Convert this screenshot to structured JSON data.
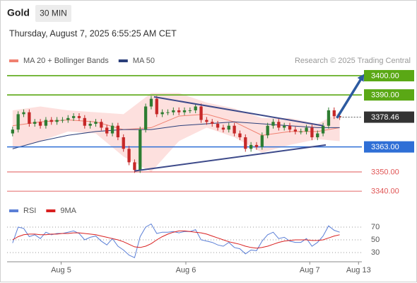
{
  "header": {
    "title": "Gold",
    "timeframe": "30 MIN",
    "datetime": "Thursday, August 7, 2025 6:55:25 AM CET",
    "credit": "Research © 2025 Trading Central"
  },
  "chart_data": [
    {
      "type": "candlestick",
      "up_color": "#2e7d32",
      "down_color": "#c62828",
      "xlim": [
        0,
        64
      ],
      "ylim": [
        3336.4,
        3404.4
      ],
      "x": [
        1,
        2,
        3,
        4,
        5,
        6,
        7,
        8,
        9,
        10,
        11,
        12,
        13,
        14,
        15,
        16,
        17,
        18,
        19,
        20,
        21,
        22,
        23,
        24,
        25,
        26,
        27,
        28,
        29,
        30,
        31,
        32,
        33,
        34,
        35,
        36,
        37,
        38,
        39,
        40,
        41,
        42,
        43,
        44,
        45,
        46,
        47,
        48,
        49,
        50,
        51,
        52,
        53,
        54,
        55,
        56,
        57,
        58,
        59,
        60
      ],
      "open": [
        3370,
        3372,
        3380,
        3381,
        3375,
        3376,
        3374,
        3377,
        3376,
        3377,
        3377,
        3378,
        3379,
        3378,
        3374,
        3375,
        3376,
        3373,
        3370,
        3374,
        3368,
        3362,
        3355,
        3351,
        3372,
        3384,
        3388,
        3380,
        3381,
        3381,
        3382,
        3381,
        3382,
        3382,
        3384,
        3377,
        3376,
        3375,
        3373,
        3372,
        3374,
        3370,
        3368,
        3362,
        3364,
        3363,
        3369,
        3374,
        3376,
        3373,
        3374,
        3372,
        3371,
        3371,
        3373,
        3368,
        3370,
        3374,
        3382,
        3379
      ],
      "high": [
        3373.5,
        3381.5,
        3382.5,
        3382.5,
        3377.5,
        3377.5,
        3378.5,
        3378.5,
        3378.5,
        3378.5,
        3379.5,
        3380.5,
        3380.5,
        3379.5,
        3376.5,
        3377.5,
        3377.5,
        3374.5,
        3375.5,
        3375.5,
        3369.5,
        3363.5,
        3356.5,
        3373.5,
        3385.5,
        3389.5,
        3389.5,
        3382.5,
        3382.5,
        3383.5,
        3383.5,
        3383.5,
        3383.5,
        3385.5,
        3385.5,
        3378.5,
        3377.5,
        3376.5,
        3374.5,
        3375.5,
        3375.5,
        3371.5,
        3369.5,
        3365.5,
        3365.5,
        3370.5,
        3375.5,
        3377.5,
        3377.5,
        3375.5,
        3375.5,
        3373.5,
        3372.5,
        3374.5,
        3374.5,
        3371.5,
        3375.5,
        3383.5,
        3383.5,
        3380.5
      ],
      "low": [
        3368.5,
        3370.5,
        3378.5,
        3373.5,
        3373.5,
        3372.5,
        3372.5,
        3374.5,
        3374.5,
        3375.5,
        3375.5,
        3376.5,
        3376.5,
        3372.5,
        3372.5,
        3373.5,
        3371.5,
        3368.5,
        3368.5,
        3366.5,
        3360.5,
        3353.5,
        3349.5,
        3349.5,
        3370.5,
        3382.5,
        3378.5,
        3378.5,
        3379.5,
        3379.5,
        3379.5,
        3379.5,
        3380.5,
        3380.5,
        3375.5,
        3374.5,
        3373.5,
        3371.5,
        3370.5,
        3370.5,
        3368.5,
        3366.5,
        3360.5,
        3360.5,
        3361.5,
        3361.5,
        3367.5,
        3372.5,
        3371.5,
        3371.5,
        3370.5,
        3369.5,
        3369.5,
        3369.5,
        3366.5,
        3366.5,
        3368.5,
        3372.5,
        3377.5,
        3377
      ],
      "close": [
        3372,
        3380,
        3381,
        3375,
        3376,
        3374,
        3377,
        3376,
        3377,
        3377,
        3378,
        3379,
        3378,
        3374,
        3375,
        3376,
        3373,
        3370,
        3374,
        3368,
        3362,
        3355,
        3351,
        3372,
        3384,
        3388,
        3380,
        3381,
        3381,
        3382,
        3381,
        3382,
        3382,
        3384,
        3377,
        3376,
        3375,
        3373,
        3372,
        3374,
        3370,
        3368,
        3362,
        3364,
        3363,
        3369,
        3374,
        3376,
        3373,
        3374,
        3372,
        3371,
        3371,
        3373,
        3368,
        3370,
        3374,
        3382,
        3379,
        3378.46
      ],
      "series": [
        {
          "name": "MA 20 + Bollinger Bands",
          "color": "#f08070",
          "band_color": "#fde0de",
          "x": [
            1,
            6,
            11,
            16,
            21,
            26,
            31,
            36,
            41,
            46,
            51,
            56,
            60
          ],
          "values": [
            3374,
            3376,
            3377,
            3376,
            3372,
            3373,
            3379,
            3380,
            3376,
            3369,
            3371,
            3371,
            3373
          ],
          "upper": [
            3382,
            3384,
            3382,
            3381,
            3380,
            3391,
            3391,
            3386,
            3383,
            3378,
            3378,
            3375,
            3381
          ],
          "lower": [
            3362,
            3366,
            3371,
            3370,
            3358,
            3350,
            3366,
            3373,
            3368,
            3360,
            3364,
            3367,
            3366
          ]
        },
        {
          "name": "MA 50",
          "color": "#2b3f7a",
          "x": [
            1,
            6,
            11,
            16,
            21,
            26,
            31,
            36,
            41,
            46,
            51,
            56,
            60
          ],
          "values": [
            3362,
            3366,
            3369,
            3371,
            3372,
            3372,
            3374,
            3375,
            3376,
            3375,
            3374,
            3373,
            3373
          ]
        }
      ],
      "levels": [
        {
          "value": 3400,
          "label": "3400.00",
          "color": "#5aa815",
          "box": true
        },
        {
          "value": 3390,
          "label": "3390.00",
          "color": "#5aa815",
          "box": true
        },
        {
          "value": 3363,
          "label": "3363.00",
          "color": "#2f6fd6",
          "box": true
        },
        {
          "value": 3350,
          "label": "3350.00",
          "color": "#e05555",
          "box": false
        },
        {
          "value": 3340,
          "label": "3340.00",
          "color": "#e05555",
          "box": false
        }
      ],
      "last_price": 3378.46,
      "last_price_color": "#333333",
      "trendlines": [
        {
          "x": [
            26.5,
            57
          ],
          "y": [
            3389,
            3374
          ],
          "color": "#3d4a8a"
        },
        {
          "x": [
            23,
            57.5
          ],
          "y": [
            3350.5,
            3364
          ],
          "color": "#3d4a8a"
        }
      ],
      "arrow": {
        "x": [
          59.5,
          64
        ],
        "y": [
          3378,
          3399
        ],
        "color": "#2c5aa0"
      }
    },
    {
      "type": "line",
      "xlim": [
        0,
        64
      ],
      "ylim": [
        17.8,
        82.2
      ],
      "yticks": [
        30,
        50,
        70
      ],
      "grid": true,
      "xticks": [
        {
          "value": 9.75,
          "label": "Aug 5"
        },
        {
          "value": 32.25,
          "label": "Aug 6"
        },
        {
          "value": 54.6,
          "label": "Aug 7"
        },
        {
          "value": 63.4,
          "label": "Aug 13"
        }
      ],
      "x": [
        1,
        2,
        3,
        4,
        5,
        6,
        7,
        8,
        9,
        10,
        11,
        12,
        13,
        14,
        15,
        16,
        17,
        18,
        19,
        20,
        21,
        22,
        23,
        24,
        25,
        26,
        27,
        28,
        29,
        30,
        31,
        32,
        33,
        34,
        35,
        36,
        37,
        38,
        39,
        40,
        41,
        42,
        43,
        44,
        45,
        46,
        47,
        48,
        49,
        50,
        51,
        52,
        53,
        54,
        55,
        56,
        57,
        58,
        59,
        60
      ],
      "series": [
        {
          "name": "RSI",
          "color": "#5b7fd6",
          "values": [
            45,
            70,
            68,
            55,
            58,
            52,
            62,
            58,
            60,
            60,
            62,
            64,
            60,
            50,
            54,
            56,
            48,
            42,
            52,
            40,
            34,
            26,
            22,
            55,
            70,
            75,
            60,
            62,
            62,
            63,
            61,
            63,
            63,
            66,
            50,
            48,
            46,
            42,
            40,
            46,
            38,
            36,
            28,
            34,
            33,
            48,
            58,
            62,
            52,
            54,
            48,
            46,
            46,
            52,
            40,
            46,
            56,
            72,
            65,
            62
          ]
        },
        {
          "name": "9MA",
          "color": "#d92020",
          "values": [
            50,
            55,
            58,
            59,
            59,
            58,
            58,
            59,
            59,
            60,
            60,
            61,
            61,
            60,
            59,
            58,
            56,
            54,
            52,
            50,
            47,
            43,
            39,
            38,
            40,
            44,
            50,
            55,
            59,
            62,
            64,
            64,
            63,
            62,
            61,
            59,
            56,
            53,
            50,
            47,
            45,
            43,
            40,
            38,
            37,
            38,
            40,
            43,
            46,
            48,
            49,
            50,
            50,
            50,
            49,
            49,
            50,
            53,
            56,
            58
          ]
        }
      ]
    }
  ]
}
